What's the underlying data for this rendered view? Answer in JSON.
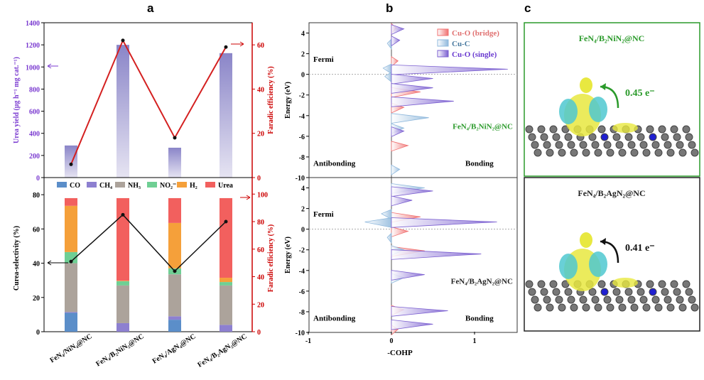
{
  "panel_labels": [
    "a",
    "b",
    "c"
  ],
  "chart_data": [
    {
      "type": "bar",
      "id": "urea-yield",
      "categories": [
        "FeN4/NiN4@NC",
        "FeN4/B2NiN2@NC",
        "FeN4/AgN4@NC",
        "FeN4/B2AgN2@NC"
      ],
      "series": [
        {
          "name": "Urea yield",
          "axis": "left",
          "values": [
            290,
            1200,
            270,
            1125
          ],
          "color": "#8a85c8"
        },
        {
          "name": "Faradic efficiency",
          "axis": "right",
          "type": "line",
          "values": [
            6,
            62,
            18,
            59
          ],
          "color": "#d42020"
        }
      ],
      "ylabel": "Urea yield (μg h⁻¹ mg cat.⁻¹)",
      "ylabel2": "Faradic efficiency (%)",
      "ylim": [
        0,
        1400
      ],
      "yticks": [
        0,
        200,
        400,
        600,
        800,
        1000,
        1200,
        1400
      ],
      "ylim2": [
        0,
        70
      ],
      "yticks2": [
        0,
        20,
        40,
        60
      ]
    },
    {
      "type": "bar",
      "id": "selectivity",
      "stacked": true,
      "categories": [
        "FeN4/NiN4@NC",
        "FeN4/B2NiN2@NC",
        "FeN4/AgN4@NC",
        "FeN4/B2AgN2@NC"
      ],
      "series": [
        {
          "name": "CO",
          "color": "#5b8ec9",
          "values": [
            11,
            0,
            7,
            0
          ]
        },
        {
          "name": "CH4",
          "color": "#8d80d0",
          "values": [
            0.5,
            5,
            2,
            4
          ]
        },
        {
          "name": "NH3",
          "color": "#aca39b",
          "values": [
            28.5,
            22,
            24.5,
            23
          ]
        },
        {
          "name": "NO2-",
          "color": "#6fcf94",
          "values": [
            6.5,
            2.5,
            3.5,
            2
          ]
        },
        {
          "name": "H2",
          "color": "#f5a03a",
          "values": [
            27,
            0.3,
            26.5,
            2.5
          ]
        },
        {
          "name": "Urea",
          "color": "#f2605e",
          "values": [
            4.5,
            48.2,
            14.5,
            46.5
          ]
        }
      ],
      "line": {
        "name": "Faradic efficiency",
        "values": [
          51,
          85,
          44,
          80
        ]
      },
      "legend": [
        "CO",
        "CH₄",
        "NH₃",
        "NO₂⁻",
        "H₂",
        "Urea"
      ],
      "ylabel": "Curea-selectivity (%)",
      "ylabel2": "Faradic efficiency (%)",
      "ylim": [
        0,
        90
      ],
      "yticks": [
        0,
        20,
        40,
        60,
        80
      ],
      "ylim2": [
        0,
        112
      ],
      "yticks2": [
        0,
        20,
        40,
        60,
        80,
        100
      ],
      "xticklabels": [
        "FeN₄/NiN₄@NC",
        "FeN₄/B₂NiN₂@NC",
        "FeN₄/AgN₄@NC",
        "FeN₄/B₂AgN₂@NC"
      ]
    },
    {
      "type": "area",
      "id": "cohp",
      "xlabel": "-COHP",
      "ylabel": "Energy (eV)",
      "xlim": [
        -1,
        1.5
      ],
      "xticks": [
        -1,
        0,
        1
      ],
      "ylim": [
        -10,
        5
      ],
      "yticks": [
        -10,
        -8,
        -6,
        -4,
        -2,
        0,
        2,
        4
      ],
      "legend": [
        "Cu-O (bridge)",
        "Cu-C",
        "Cu-O (single)"
      ],
      "colors": {
        "Cu-O (bridge)": "#f07070",
        "Cu-C": "#8fb8dc",
        "Cu-O (single)": "#7a5ed0"
      },
      "annotations": {
        "fermi": "Fermi",
        "anti": "Antibonding",
        "bond": "Bonding"
      },
      "panels": [
        {
          "name": "FeN₄/B₂NiN₂@NC",
          "name_color": "#2a9a2a",
          "peaks": {
            "Cu-O (single)": [
              [
                4.4,
                0.15
              ],
              [
                3.3,
                0.1
              ],
              [
                0.5,
                1.4
              ],
              [
                -0.4,
                0.5
              ],
              [
                -1.3,
                0.5
              ],
              [
                -2.6,
                0.75
              ],
              [
                -5.5,
                0.15
              ]
            ],
            "Cu-C": [
              [
                0.6,
                -0.1
              ],
              [
                -0.2,
                -0.08
              ],
              [
                -4.2,
                0.45
              ],
              [
                -5.2,
                0.15
              ],
              [
                -9.2,
                0.1
              ],
              [
                3,
                -0.05
              ]
            ],
            "Cu-O (bridge)": [
              [
                1.3,
                0.08
              ],
              [
                -1.7,
                0.35
              ],
              [
                -3.2,
                0.15
              ],
              [
                -6.9,
                0.2
              ],
              [
                4.5,
                0.06
              ]
            ]
          }
        },
        {
          "name": "FeN₄/B₂AgN₂@NC",
          "name_color": "#222222",
          "peaks": {
            "Cu-O (single)": [
              [
                3.7,
                0.5
              ],
              [
                2.8,
                0.25
              ],
              [
                0.7,
                1.27
              ],
              [
                -2.4,
                1.08
              ],
              [
                -4.4,
                0.4
              ],
              [
                -7.9,
                0.68
              ],
              [
                -9.2,
                0.5
              ]
            ],
            "Cu-C": [
              [
                4,
                0.4
              ],
              [
                0.7,
                -0.32
              ],
              [
                1.5,
                -0.12
              ],
              [
                -0.8,
                -0.05
              ],
              [
                -2,
                0.15
              ],
              [
                -4.7,
                0.15
              ]
            ],
            "Cu-O (bridge)": [
              [
                1.2,
                0.35
              ],
              [
                -0.2,
                0.2
              ],
              [
                -2.1,
                0.4
              ],
              [
                -7.8,
                0.15
              ],
              [
                -9.7,
                0.08
              ]
            ]
          }
        }
      ]
    }
  ],
  "panel_c": [
    {
      "title": "FeN₄/B₂NiN₂@NC",
      "title_color": "#2a9a2a",
      "charge": "0.45 e⁻",
      "arrow_color": "#2a9a2a"
    },
    {
      "title": "FeN₄/B₂AgN₂@NC",
      "title_color": "#222222",
      "charge": "0.41 e⁻",
      "arrow_color": "#111111"
    }
  ]
}
